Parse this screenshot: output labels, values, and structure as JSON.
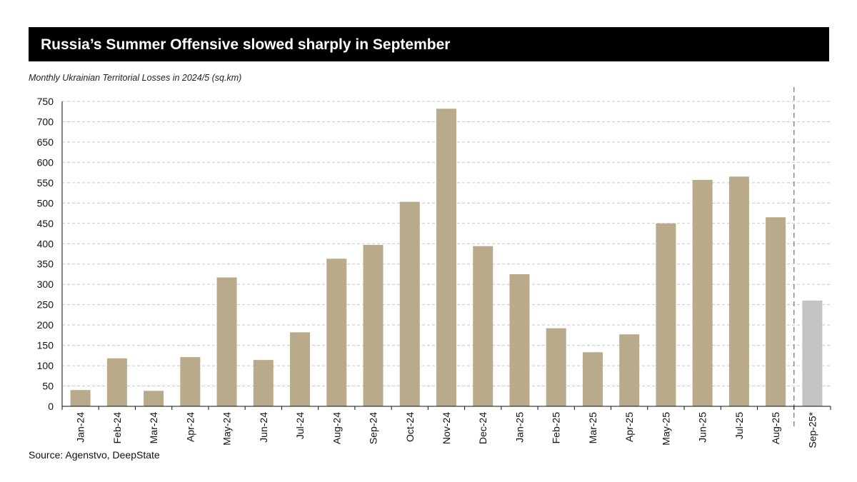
{
  "header": {
    "title": "Russia’s Summer Offensive slowed sharply in September",
    "subtitle": "Monthly Ukrainian Territorial Losses in 2024/5 (sq.km)"
  },
  "footer": {
    "source": "Source: Agenstvo, DeepState"
  },
  "colors": {
    "bar": "#b8aa8a",
    "bar_estimate": "#c4c4c4",
    "grid": "#c8c8c8",
    "title_bg": "#000000"
  },
  "chart_data": {
    "type": "bar",
    "title": "Russia’s Summer Offensive slowed sharply in September",
    "ylabel": "Monthly Ukrainian Territorial Losses in 2024/5 (sq.km)",
    "xlabel": "",
    "ylim": [
      0,
      750
    ],
    "yticks": [
      0,
      50,
      100,
      150,
      200,
      250,
      300,
      350,
      400,
      450,
      500,
      550,
      600,
      650,
      700,
      750
    ],
    "grid": true,
    "categories": [
      "Jan-24",
      "Feb-24",
      "Mar-24",
      "Apr-24",
      "May-24",
      "Jun-24",
      "Jul-24",
      "Aug-24",
      "Sep-24",
      "Oct-24",
      "Nov-24",
      "Dec-24",
      "Jan-25",
      "Feb-25",
      "Mar-25",
      "Apr-25",
      "May-25",
      "Jun-25",
      "Jul-25",
      "Aug-25",
      "Sep-25*"
    ],
    "values": [
      40,
      118,
      38,
      121,
      317,
      114,
      182,
      363,
      397,
      503,
      732,
      394,
      325,
      192,
      133,
      177,
      450,
      557,
      565,
      465,
      260
    ],
    "estimated": [
      false,
      false,
      false,
      false,
      false,
      false,
      false,
      false,
      false,
      false,
      false,
      false,
      false,
      false,
      false,
      false,
      false,
      false,
      false,
      false,
      true
    ],
    "separator_before": "Sep-25*"
  }
}
